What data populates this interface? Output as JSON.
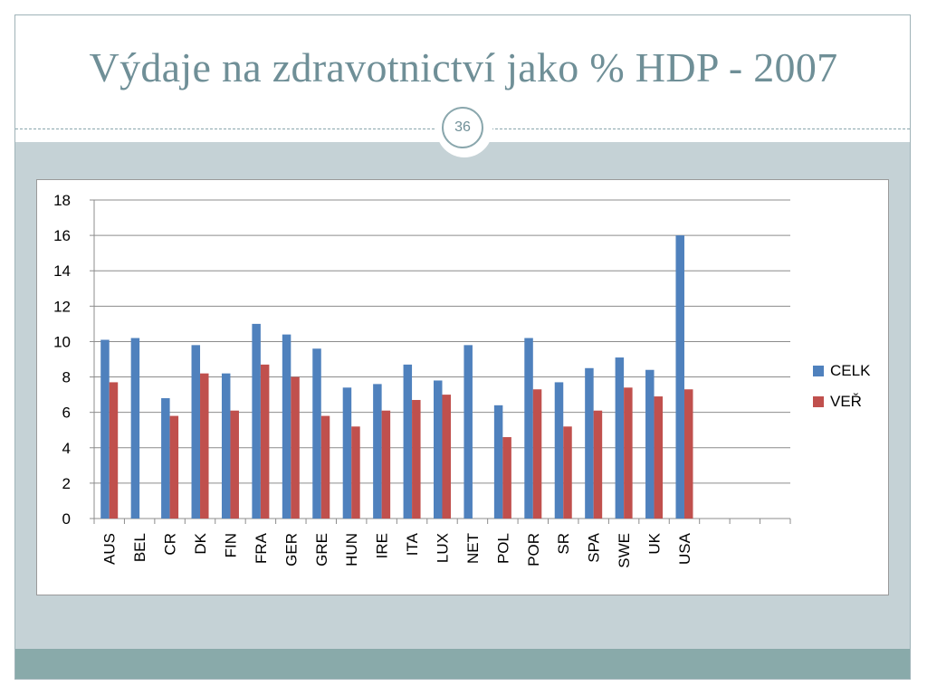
{
  "slide": {
    "title": "Výdaje na zdravotnictví jako % HDP - 2007",
    "page_number": "36"
  },
  "colors": {
    "title": "#6f8f97",
    "band": "#c5d2d6",
    "footer": "#89aaaa",
    "celk": "#4f81bd",
    "ver": "#c0504d"
  },
  "chart_data": {
    "type": "bar",
    "title": "",
    "xlabel": "",
    "ylabel": "",
    "ylim": [
      0,
      18
    ],
    "yticks": [
      0,
      2,
      4,
      6,
      8,
      10,
      12,
      14,
      16,
      18
    ],
    "grid": true,
    "legend_position": "right",
    "categories": [
      "AUS",
      "BEL",
      "CR",
      "DK",
      "FIN",
      "FRA",
      "GER",
      "GRE",
      "HUN",
      "IRE",
      "ITA",
      "LUX",
      "NET",
      "POL",
      "POR",
      "SR",
      "SPA",
      "SWE",
      "UK",
      "USA",
      "",
      "",
      ""
    ],
    "series": [
      {
        "name": "CELK",
        "color": "#4f81bd",
        "values": [
          10.1,
          10.2,
          6.8,
          9.8,
          8.2,
          11.0,
          10.4,
          9.6,
          7.4,
          7.6,
          8.7,
          7.8,
          9.8,
          6.4,
          10.2,
          7.7,
          8.5,
          9.1,
          8.4,
          16.0,
          null,
          null,
          null
        ]
      },
      {
        "name": "VEŘ",
        "color": "#c0504d",
        "values": [
          7.7,
          null,
          5.8,
          8.2,
          6.1,
          8.7,
          8.0,
          5.8,
          5.2,
          6.1,
          6.7,
          7.0,
          null,
          4.6,
          7.3,
          5.2,
          6.1,
          7.4,
          6.9,
          7.3,
          null,
          null,
          null
        ]
      }
    ]
  }
}
